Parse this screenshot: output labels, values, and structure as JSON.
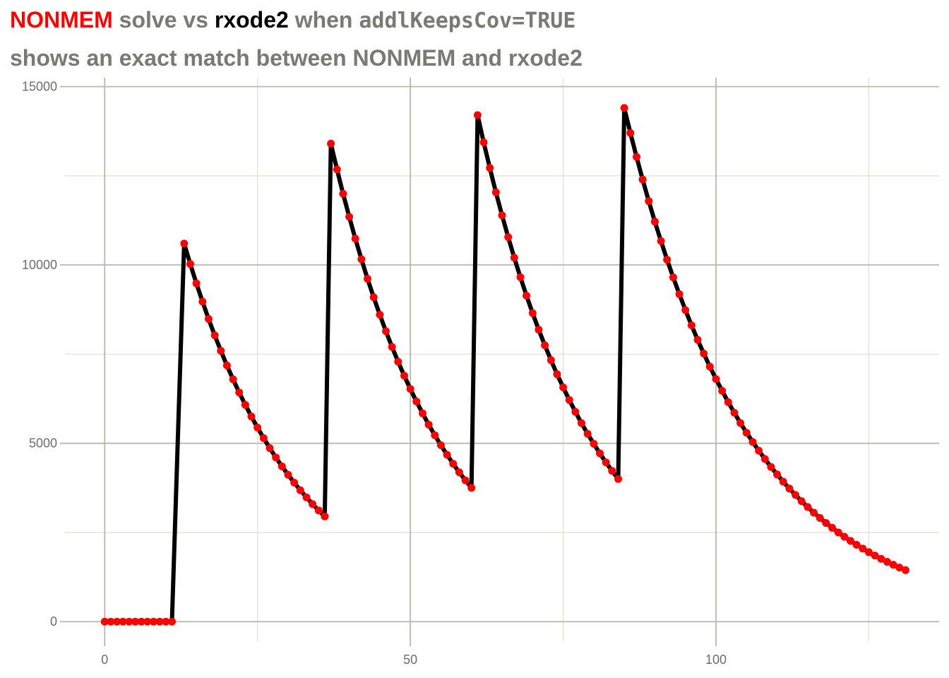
{
  "title": {
    "nonmem": "NONMEM",
    "solve_vs": " solve vs ",
    "rxode2": "rxode2",
    "when": " when ",
    "code": "addlKeepsCov=TRUE"
  },
  "subtitle": "shows an exact match between NONMEM and rxode2",
  "colors": {
    "nonmem": "#ff0000",
    "rxode2": "#000000",
    "title_gray": "#7a7a72",
    "grid_major": "#b8b8ac",
    "grid_minor": "#e2e2d8",
    "tick_text": "#6d6d6d"
  },
  "chart_data": {
    "type": "line",
    "title": "NONMEM solve vs rxode2 when addlKeepsCov=TRUE",
    "subtitle": "shows an exact match between NONMEM and rxode2",
    "xlabel": "",
    "ylabel": "",
    "xlim": [
      -6.5,
      136.5
    ],
    "ylim": [
      -550,
      15250
    ],
    "x_ticks": [
      0,
      50,
      100
    ],
    "x_tick_labels": [
      "0",
      "50",
      "100"
    ],
    "y_ticks": [
      0,
      5000,
      10000,
      15000
    ],
    "y_tick_labels": [
      "0",
      "5000",
      "10000",
      "15000"
    ],
    "grid": true,
    "legend": "none",
    "dose": {
      "first_dose_time": 12,
      "interval": 24,
      "n_doses": 4,
      "elimination_rate": 0.05,
      "peaks": [
        10600,
        13400,
        14200,
        14400
      ],
      "troughs_before_dose": [
        0,
        2950,
        3750,
        4000
      ],
      "t_end": 130
    },
    "series": [
      {
        "name": "rxode2",
        "style": "line",
        "color": "#000000"
      },
      {
        "name": "NONMEM",
        "style": "points",
        "color": "#ff0000"
      }
    ]
  }
}
